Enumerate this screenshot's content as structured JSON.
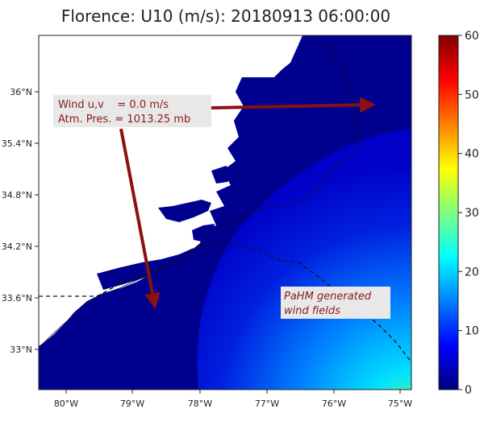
{
  "title": "Florence: U10 (m/s): 20180913 06:00:00",
  "map": {
    "lat_ticks": [
      "36°N",
      "35.4°N",
      "34.8°N",
      "34.2°N",
      "33.6°N",
      "33°N"
    ],
    "lon_ticks": [
      "80°W",
      "79°W",
      "78°W",
      "77°W",
      "76°W",
      "75°W"
    ],
    "colors": {
      "ocean": "#00008f",
      "land": "#ffffff",
      "arrow": "#8b1010",
      "label_bg": "#e8e8e8"
    }
  },
  "annotation": {
    "line1": "Wind u,v    = 0.0 m/s",
    "line2": "Atm. Pres. = 1013.25 mb"
  },
  "pahm_label": {
    "line1": "PaHM generated",
    "line2": "wind fields"
  },
  "colorbar": {
    "ticks": [
      "0",
      "10",
      "20",
      "30",
      "40",
      "50",
      "60"
    ],
    "min": 0,
    "max": 60,
    "colormap": "jet"
  }
}
